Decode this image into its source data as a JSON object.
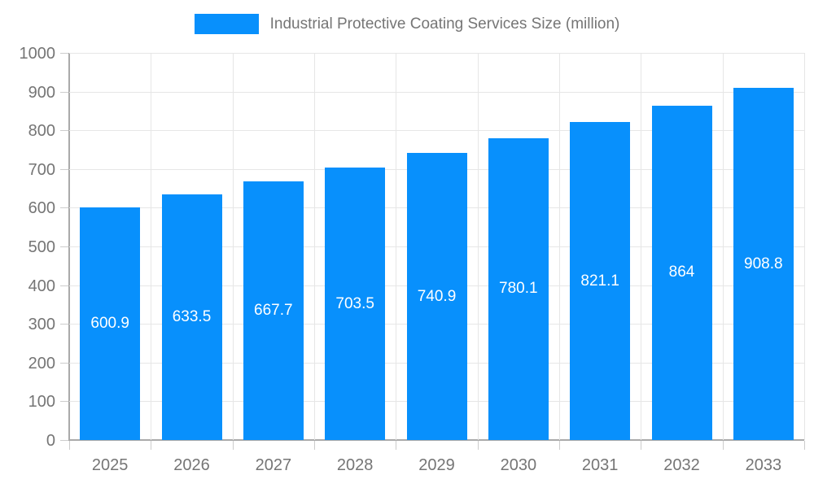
{
  "chart_data": {
    "type": "bar",
    "title": "Industrial Protective Coating Services Size (million)",
    "categories": [
      "2025",
      "2026",
      "2027",
      "2028",
      "2029",
      "2030",
      "2031",
      "2032",
      "2033"
    ],
    "series": [
      {
        "name": "Industrial Protective Coating Services Size (million)",
        "values": [
          600.9,
          633.5,
          667.7,
          703.5,
          740.9,
          780.1,
          821.1,
          864,
          908.8
        ]
      }
    ],
    "bar_labels": [
      "600.9",
      "633.5",
      "667.7",
      "703.5",
      "740.9",
      "780.1",
      "821.1",
      "864",
      "908.8"
    ],
    "xlabel": "",
    "ylabel": "",
    "ylim": [
      0,
      1000
    ],
    "ytick_step": 100,
    "ytick_labels": [
      "0",
      "100",
      "200",
      "300",
      "400",
      "500",
      "600",
      "700",
      "800",
      "900",
      "1000"
    ],
    "grid": true,
    "legend_position": "top",
    "colors": {
      "bar": "#0890fc",
      "grid": "#e6e6e6",
      "axis": "#aaaaaa",
      "tick": "#cccccc",
      "text": "#757575",
      "bar_label": "#ffffff",
      "background": "#ffffff"
    }
  }
}
